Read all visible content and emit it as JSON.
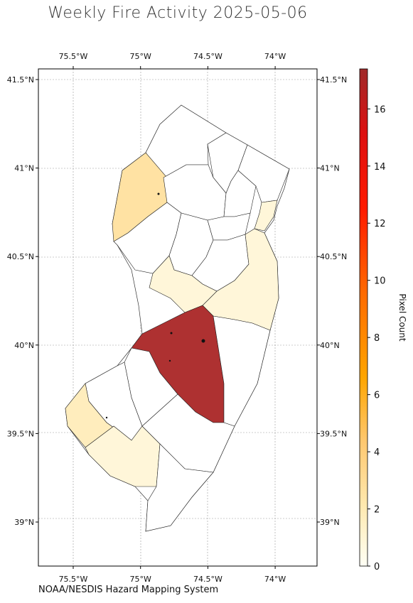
{
  "title": "Weekly Fire Activity 2025-05-06",
  "credit": "NOAA/NESDIS Hazard Mapping System",
  "map": {
    "lon_ticks": [
      {
        "label": "75.5°W",
        "value": -75.5
      },
      {
        "label": "75°W",
        "value": -75.0
      },
      {
        "label": "74.5°W",
        "value": -74.5
      },
      {
        "label": "74°W",
        "value": -74.0
      }
    ],
    "lat_ticks": [
      {
        "label": "41.5°N",
        "value": 41.5
      },
      {
        "label": "41°N",
        "value": 41.0
      },
      {
        "label": "40.5°N",
        "value": 40.5
      },
      {
        "label": "40°N",
        "value": 40.0
      },
      {
        "label": "39.5°N",
        "value": 39.5
      },
      {
        "label": "39°N",
        "value": 39.0
      }
    ],
    "gridlines": true
  },
  "colorbar": {
    "label": "Pixel Count",
    "ticks": [
      "0",
      "2",
      "4",
      "6",
      "8",
      "10",
      "12",
      "14",
      "16"
    ],
    "colormap_stops": [
      "#fffff5",
      "#ffe9b0",
      "#ffc870",
      "#ffa500",
      "#ff6a00",
      "#ff1a00",
      "#dd1010",
      "#a02a2a"
    ]
  },
  "counties": [
    {
      "name": "Sussex",
      "value": 0
    },
    {
      "name": "Passaic",
      "value": 0
    },
    {
      "name": "Bergen",
      "value": 0
    },
    {
      "name": "Warren",
      "value": 3
    },
    {
      "name": "Morris",
      "value": 0
    },
    {
      "name": "Essex",
      "value": 0
    },
    {
      "name": "Hudson",
      "value": 1
    },
    {
      "name": "Hunterdon",
      "value": 0
    },
    {
      "name": "Somerset",
      "value": 0
    },
    {
      "name": "Union",
      "value": 0
    },
    {
      "name": "Middlesex",
      "value": 0
    },
    {
      "name": "Monmouth",
      "value": 1
    },
    {
      "name": "Mercer",
      "value": 1
    },
    {
      "name": "Burlington",
      "value": 17
    },
    {
      "name": "Ocean",
      "value": 0
    },
    {
      "name": "Camden",
      "value": 0
    },
    {
      "name": "Gloucester",
      "value": 0
    },
    {
      "name": "Salem",
      "value": 2
    },
    {
      "name": "Cumberland",
      "value": 1
    },
    {
      "name": "Atlantic",
      "value": 0
    },
    {
      "name": "Cape May",
      "value": 0
    }
  ]
}
